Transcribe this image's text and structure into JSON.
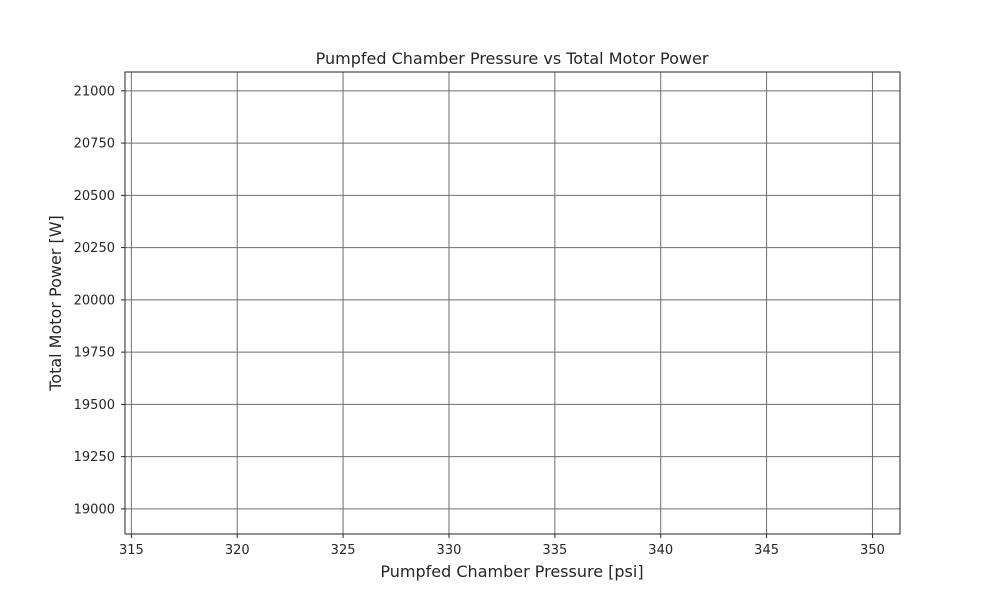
{
  "chart_data": {
    "type": "line",
    "title": "Pumpfed Chamber Pressure vs Total Motor Power",
    "xlabel": "Pumpfed Chamber Pressure [psi]",
    "ylabel": "Total Motor Power [W]",
    "xlim": [
      314.7,
      351.3
    ],
    "ylim": [
      18880,
      21090
    ],
    "xticks": [
      315,
      320,
      325,
      330,
      335,
      340,
      345,
      350
    ],
    "xtick_labels": [
      "315",
      "320",
      "325",
      "330",
      "335",
      "340",
      "345",
      "350"
    ],
    "yticks": [
      19000,
      19250,
      19500,
      19750,
      20000,
      20250,
      20500,
      20750,
      21000
    ],
    "ytick_labels": [
      "19000",
      "19250",
      "19500",
      "19750",
      "20000",
      "20250",
      "20500",
      "20750",
      "21000"
    ],
    "grid": true,
    "series": [],
    "colors": {
      "grid": "#6e6e6e",
      "axes": "#262626",
      "text": "#262626",
      "background": "#ffffff"
    }
  }
}
